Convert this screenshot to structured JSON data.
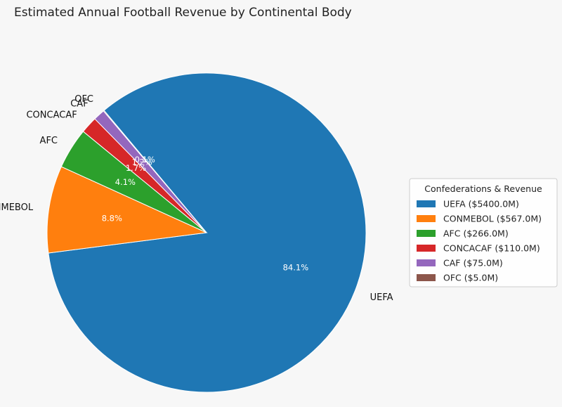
{
  "chart_data": {
    "type": "pie",
    "title": "Estimated Annual Football Revenue by Continental Body",
    "start_angle_deg": 130,
    "direction": "clockwise",
    "legend": {
      "title": "Confederations & Revenue",
      "placement": "right"
    },
    "slices": [
      {
        "label": "UEFA",
        "value": 5400.0,
        "pct_label": "84.1%",
        "legend_label": "UEFA ($5400.0M)",
        "color": "#1f77b4"
      },
      {
        "label": "CONMEBOL",
        "value": 567.0,
        "pct_label": "8.8%",
        "legend_label": "CONMEBOL ($567.0M)",
        "color": "#ff7f0e"
      },
      {
        "label": "AFC",
        "value": 266.0,
        "pct_label": "4.1%",
        "legend_label": "AFC ($266.0M)",
        "color": "#2ca02c"
      },
      {
        "label": "CONCACAF",
        "value": 110.0,
        "pct_label": "1.7%",
        "legend_label": "CONCACAF ($110.0M)",
        "color": "#d62728"
      },
      {
        "label": "CAF",
        "value": 75.0,
        "pct_label": "1.2%",
        "legend_label": "CAF ($75.0M)",
        "color": "#9467bd"
      },
      {
        "label": "OFC",
        "value": 5.0,
        "pct_label": "0.1%",
        "legend_label": "OFC ($5.0M)",
        "color": "#8c564b"
      }
    ]
  }
}
